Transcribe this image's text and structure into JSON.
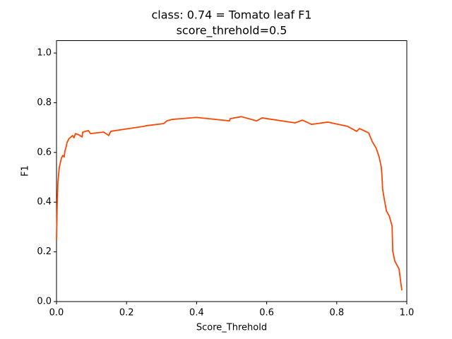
{
  "chart_data": {
    "type": "line",
    "title": "class: 0.74 = Tomato leaf F1",
    "subtitle": "score_threhold=0.5",
    "x_label": "Score_Threhold",
    "y_label": "F1",
    "xlim": [
      0,
      1
    ],
    "ylim": [
      0,
      1.05
    ],
    "xticks": [
      {
        "value": 0,
        "label": "0.0"
      },
      0.2,
      0.4,
      0.6,
      0.8,
      {
        "value": 1,
        "label": "1.0"
      }
    ],
    "yticks": [
      {
        "value": 0,
        "label": "0.0"
      },
      0.2,
      0.4,
      0.6,
      0.8,
      {
        "value": 1,
        "label": "1.0"
      }
    ],
    "grid": false,
    "series": [
      {
        "color": "#ff4500",
        "x": [
          0,
          0.002,
          0.004,
          0.008,
          0.014,
          0.018,
          0.022,
          0.024,
          0.028,
          0.03,
          0.036,
          0.046,
          0.05,
          0.054,
          0.065,
          0.073,
          0.075,
          0.091,
          0.097,
          0.135,
          0.149,
          0.155,
          0.192,
          0.25,
          0.254,
          0.306,
          0.315,
          0.331,
          0.399,
          0.494,
          0.496,
          0.528,
          0.571,
          0.587,
          0.681,
          0.702,
          0.728,
          0.774,
          0.831,
          0.857,
          0.865,
          0.891,
          0.901,
          0.913,
          0.921,
          0.927,
          0.929,
          0.931,
          0.935,
          0.942,
          0.95,
          0.958,
          0.96,
          0.966,
          0.978,
          0.982,
          0.986
        ],
        "values": [
          0.247,
          0.389,
          0.48,
          0.54,
          0.577,
          0.588,
          0.582,
          0.605,
          0.625,
          0.64,
          0.656,
          0.668,
          0.659,
          0.676,
          0.67,
          0.662,
          0.682,
          0.688,
          0.676,
          0.682,
          0.668,
          0.685,
          0.693,
          0.705,
          0.707,
          0.716,
          0.727,
          0.733,
          0.741,
          0.727,
          0.736,
          0.744,
          0.727,
          0.739,
          0.719,
          0.73,
          0.713,
          0.722,
          0.705,
          0.685,
          0.696,
          0.679,
          0.645,
          0.616,
          0.582,
          0.543,
          0.509,
          0.452,
          0.418,
          0.364,
          0.344,
          0.304,
          0.202,
          0.162,
          0.131,
          0.085,
          0.045
        ]
      }
    ]
  }
}
